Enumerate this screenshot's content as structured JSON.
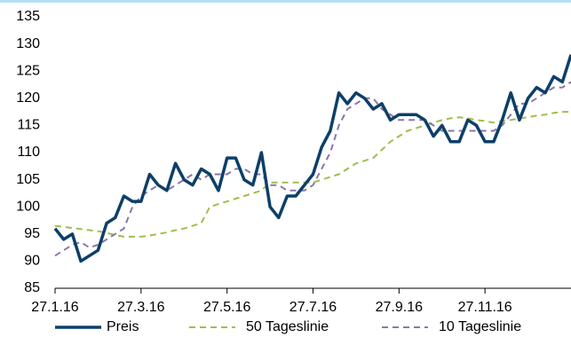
{
  "chart_data": {
    "type": "line",
    "categories": [
      "27.1.16",
      null,
      null,
      null,
      null,
      null,
      null,
      null,
      null,
      null,
      "27.3.16",
      null,
      null,
      null,
      null,
      null,
      null,
      null,
      null,
      null,
      "27.5.16",
      null,
      null,
      null,
      null,
      null,
      null,
      null,
      null,
      null,
      "27.7.16",
      null,
      null,
      null,
      null,
      null,
      null,
      null,
      null,
      null,
      "27.9.16",
      null,
      null,
      null,
      null,
      null,
      null,
      null,
      null,
      null,
      "27.11.16",
      null,
      null,
      null,
      null,
      null,
      null,
      null,
      null,
      null,
      null
    ],
    "ylim": [
      85,
      135
    ],
    "yticks": [
      85,
      90,
      95,
      100,
      105,
      110,
      115,
      120,
      125,
      130,
      135
    ],
    "legend": "bottom",
    "series": [
      {
        "name": "Preis",
        "color": "#0d3f68",
        "dash": false,
        "values": [
          96,
          94,
          95,
          90,
          91,
          92,
          97,
          98,
          102,
          101,
          101,
          106,
          104,
          103,
          108,
          105,
          104,
          107,
          106,
          103,
          109,
          109,
          105,
          104,
          110,
          100,
          98,
          102,
          102,
          104,
          106,
          111,
          114,
          121,
          119,
          121,
          120,
          118,
          119,
          116,
          117,
          117,
          117,
          116,
          113,
          115,
          112,
          112,
          116,
          115,
          112,
          112,
          116,
          121,
          116,
          120,
          122,
          121,
          124,
          123,
          128
        ]
      },
      {
        "name": "50 Tageslinie",
        "color": "#9ebf4e",
        "dash": true,
        "values": [
          96.5,
          96.3,
          96.1,
          95.9,
          95.7,
          95.5,
          95.2,
          94.8,
          94.5,
          94.5,
          94.5,
          94.7,
          95,
          95.3,
          95.7,
          96,
          96.5,
          97,
          100,
          100.5,
          101,
          101.5,
          102,
          102.5,
          103,
          104.5,
          104.5,
          104.5,
          104.5,
          104.5,
          104.5,
          105,
          105.5,
          106,
          107,
          108,
          108.5,
          109,
          110.5,
          112,
          113,
          114,
          114.5,
          115,
          115.5,
          116,
          116.3,
          116.5,
          116.3,
          116,
          115.8,
          115.5,
          115.8,
          116,
          116.3,
          116.5,
          116.8,
          117,
          117.3,
          117.5,
          117.5
        ]
      },
      {
        "name": "10 Tageslinie",
        "color": "#8c76aa",
        "dash": true,
        "values": [
          91,
          92,
          93,
          93.5,
          92.5,
          93,
          94,
          95,
          96,
          100,
          102,
          103,
          104,
          103,
          104,
          105,
          106,
          105,
          106,
          106,
          106,
          107,
          107,
          106,
          106,
          104,
          104,
          103,
          103,
          103,
          104,
          107,
          110,
          115,
          118,
          119,
          120,
          120,
          118,
          117,
          116,
          116,
          116,
          116,
          115,
          114,
          114,
          114,
          114,
          114,
          114,
          114,
          115,
          117,
          119,
          119,
          120,
          121,
          122,
          122,
          123
        ]
      }
    ]
  }
}
